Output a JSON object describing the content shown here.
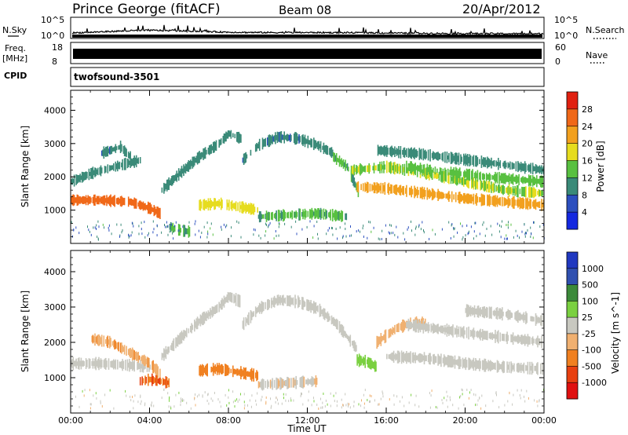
{
  "header": {
    "station": "Prince George (fitACF)",
    "beam": "Beam 08",
    "date": "20/Apr/2012"
  },
  "noise_panel": {
    "left_label": "N.Sky",
    "right_label": "N.Search",
    "tick_top": "10^5",
    "tick_bottom": "10^0",
    "right_tick_top": "10^5",
    "right_tick_bottom": "10^0"
  },
  "freq_panel": {
    "left_label_1": "Freq.",
    "left_label_2": "[MHz]",
    "tick_top": "18",
    "tick_bottom": "8",
    "right_label": "Nave",
    "right_tick_top": "60",
    "right_tick_bottom": "0"
  },
  "cpid_panel": {
    "left_label": "CPID",
    "program": "twofsound",
    "cpid_value": "-3501"
  },
  "colors": {
    "power_scale": [
      "#1428e0",
      "#2c4fbf",
      "#3a8a78",
      "#58c040",
      "#e6dc1e",
      "#f2a01e",
      "#f06818",
      "#e02010"
    ],
    "velocity_scale": [
      "#2038c0",
      "#3050b0",
      "#3c8a3a",
      "#7ad040",
      "#c8c8c0",
      "#f0b070",
      "#f08020",
      "#e84010",
      "#e01010"
    ],
    "ground_scatter": "#c8c8c0"
  },
  "chart_data": [
    {
      "type": "heatmap",
      "name": "power",
      "ylabel": "Slant Range [km]",
      "yticks": [
        "1000",
        "2000",
        "3000",
        "4000"
      ],
      "ylim": [
        0,
        4600
      ],
      "xlim_hours": [
        0,
        24
      ],
      "colorbar": {
        "label": "Power [dB]",
        "ticks": [
          "4",
          "8",
          "12",
          "16",
          "20",
          "24",
          "28"
        ],
        "range": [
          0,
          32
        ]
      },
      "traces": [
        {
          "x": [
            0.0,
            1.5,
            3.0,
            4.0,
            4.5
          ],
          "y": [
            1300,
            1300,
            1250,
            1050,
            900
          ],
          "value": 28
        },
        {
          "x": [
            0.0,
            1.0,
            2.5,
            3.5
          ],
          "y": [
            1850,
            2100,
            2350,
            2500
          ],
          "value": 10
        },
        {
          "x": [
            1.5,
            2.5,
            3.0
          ],
          "y": [
            2700,
            2900,
            2600
          ],
          "value": 8
        },
        {
          "x": [
            4.6,
            5.5,
            6.5,
            7.5,
            8.0,
            8.6
          ],
          "y": [
            1600,
            2100,
            2600,
            3000,
            3300,
            3150
          ],
          "value": 10
        },
        {
          "x": [
            8.7,
            9.5,
            10.5,
            11.5,
            12.5,
            13.3
          ],
          "y": [
            2500,
            2950,
            3200,
            3150,
            2950,
            2700
          ],
          "value": 8
        },
        {
          "x": [
            13.3,
            14.0,
            14.6
          ],
          "y": [
            2600,
            2300,
            1500
          ],
          "value": 12
        },
        {
          "x": [
            6.5,
            7.5,
            8.5,
            9.5
          ],
          "y": [
            1150,
            1200,
            1100,
            1000
          ],
          "value": 18
        },
        {
          "x": [
            9.5,
            11.0,
            12.5,
            14.0
          ],
          "y": [
            800,
            850,
            900,
            800
          ],
          "value": 12
        },
        {
          "x": [
            14.2,
            16.0,
            18.0,
            20.0,
            22.0,
            24.0
          ],
          "y": [
            2200,
            2300,
            2100,
            1850,
            1600,
            1500
          ],
          "value": 16
        },
        {
          "x": [
            14.5,
            16.0,
            18.0,
            20.0,
            22.0,
            24.0
          ],
          "y": [
            1700,
            1650,
            1500,
            1350,
            1250,
            1150
          ],
          "value": 22
        },
        {
          "x": [
            15.5,
            17.5,
            19.5,
            21.5,
            24.0
          ],
          "y": [
            2800,
            2700,
            2550,
            2400,
            2200
          ],
          "value": 10
        },
        {
          "x": [
            17.0,
            19.0,
            21.0,
            24.0
          ],
          "y": [
            2300,
            2150,
            2000,
            1850
          ],
          "value": 14
        },
        {
          "x": [
            5.0,
            5.5,
            6.0
          ],
          "y": [
            500,
            400,
            350
          ],
          "value": 12
        }
      ]
    },
    {
      "type": "heatmap",
      "name": "velocity",
      "ylabel": "Slant Range [km]",
      "yticks": [
        "1000",
        "2000",
        "3000",
        "4000"
      ],
      "ylim": [
        0,
        4600
      ],
      "xlim_hours": [
        0,
        24
      ],
      "xlabel": "Time UT",
      "xticks": [
        "00:00",
        "04:00",
        "08:00",
        "12:00",
        "16:00",
        "20:00",
        "00:00"
      ],
      "colorbar": {
        "label": "Velocity [m s^-1]",
        "ticks": [
          "1000",
          "500",
          "100",
          "25",
          "-25",
          "-100",
          "-500",
          "-1000"
        ],
        "range": [
          -1250,
          1250
        ]
      },
      "traces": [
        {
          "x": [
            0.0,
            1.5,
            3.0,
            4.0
          ],
          "y": [
            1400,
            1400,
            1350,
            1300
          ],
          "value": 0
        },
        {
          "x": [
            1.0,
            2.0,
            3.0,
            4.0,
            4.5
          ],
          "y": [
            2100,
            2000,
            1700,
            1400,
            1100
          ],
          "value": -400
        },
        {
          "x": [
            3.5,
            4.0,
            4.5,
            5.0
          ],
          "y": [
            900,
            950,
            900,
            850
          ],
          "value": -800
        },
        {
          "x": [
            4.6,
            5.5,
            6.5,
            7.5,
            8.0,
            8.6
          ],
          "y": [
            1600,
            2100,
            2600,
            3000,
            3300,
            3150
          ],
          "value": 0
        },
        {
          "x": [
            8.7,
            9.5,
            10.5,
            11.5,
            12.5,
            13.5,
            14.5
          ],
          "y": [
            2500,
            2950,
            3200,
            3150,
            2950,
            2500,
            1800
          ],
          "value": 0
        },
        {
          "x": [
            6.5,
            7.5,
            8.5,
            9.5
          ],
          "y": [
            1200,
            1250,
            1150,
            1050
          ],
          "value": -600
        },
        {
          "x": [
            14.5,
            15.0,
            15.5
          ],
          "y": [
            1500,
            1450,
            1300
          ],
          "value": 300
        },
        {
          "x": [
            15.5,
            16.5,
            17.5,
            18.0
          ],
          "y": [
            2000,
            2400,
            2600,
            2500
          ],
          "value": -300
        },
        {
          "x": [
            16.0,
            18.0,
            20.0,
            22.0,
            24.0
          ],
          "y": [
            1600,
            1550,
            1400,
            1300,
            1250
          ],
          "value": 0
        },
        {
          "x": [
            17.0,
            19.0,
            21.0,
            24.0
          ],
          "y": [
            2500,
            2350,
            2200,
            2000
          ],
          "value": 0
        },
        {
          "x": [
            20.0,
            22.0,
            24.0
          ],
          "y": [
            2900,
            2800,
            2600
          ],
          "value": 0
        },
        {
          "x": [
            9.5,
            11.0,
            12.5
          ],
          "y": [
            800,
            850,
            900
          ],
          "value": -100
        }
      ]
    }
  ]
}
